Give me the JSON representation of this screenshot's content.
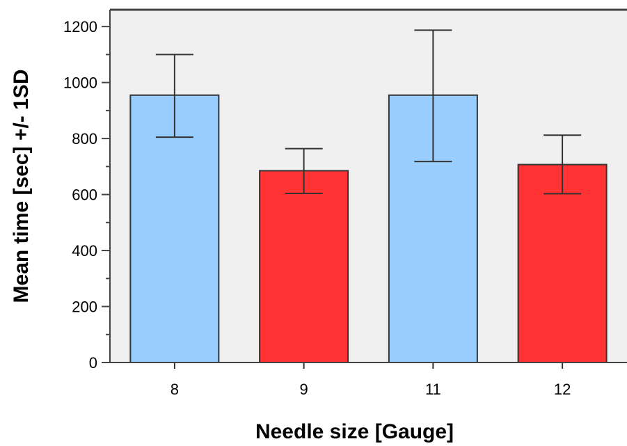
{
  "chart_data": {
    "type": "bar",
    "title": "",
    "xlabel": "Needle size [Gauge]",
    "ylabel": "Mean time [sec] +/- 1SD",
    "categories": [
      "8",
      "9",
      "11",
      "12"
    ],
    "values": [
      955,
      685,
      955,
      707
    ],
    "error_bars": [
      {
        "lower": 805,
        "upper": 1100
      },
      {
        "lower": 604,
        "upper": 764
      },
      {
        "lower": 718,
        "upper": 1187
      },
      {
        "lower": 603,
        "upper": 812
      }
    ],
    "bar_colors": [
      "#99ccff",
      "#ff3333",
      "#99ccff",
      "#ff3333"
    ],
    "plot_background": "#f0f0f0",
    "ylim": [
      0,
      1260
    ],
    "yticks": [
      0,
      200,
      400,
      600,
      800,
      1000,
      1200
    ],
    "ytick_labels": [
      "0",
      "200",
      "400",
      "600",
      "800",
      "1000",
      "1200"
    ],
    "grid": false,
    "legend": "none"
  }
}
